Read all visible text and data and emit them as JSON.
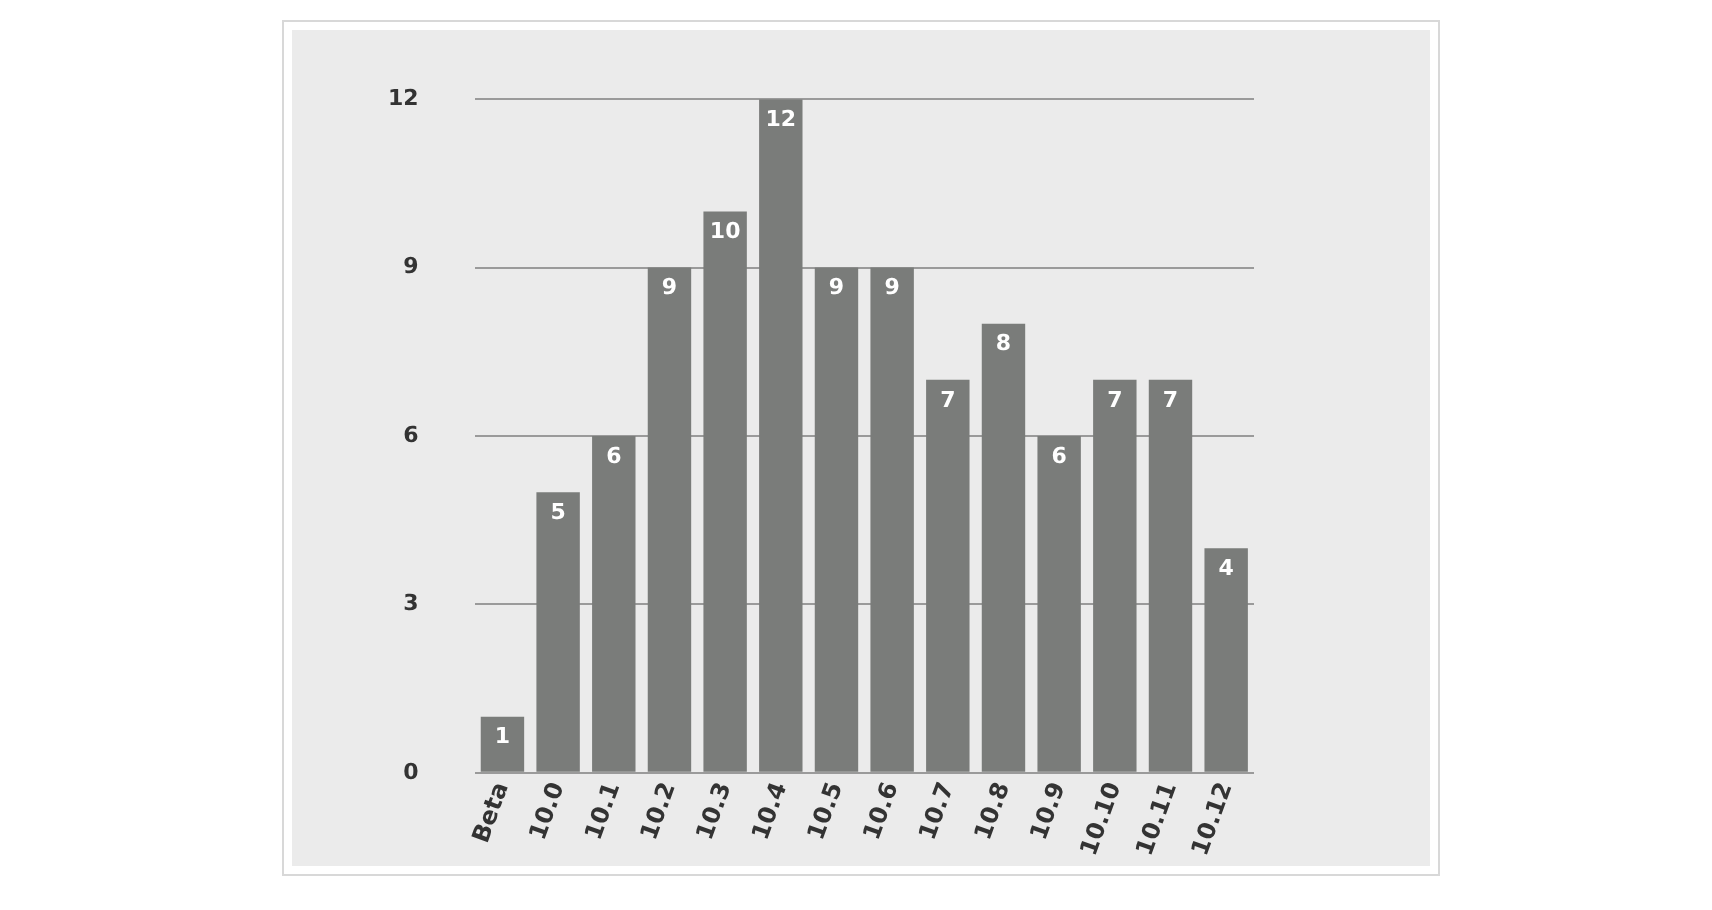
{
  "chart_data": {
    "type": "bar",
    "categories": [
      "Beta",
      "10.0",
      "10.1",
      "10.2",
      "10.3",
      "10.4",
      "10.5",
      "10.6",
      "10.7",
      "10.8",
      "10.9",
      "10.10",
      "10.11",
      "10.12"
    ],
    "values": [
      1,
      5,
      6,
      9,
      10,
      12,
      9,
      9,
      7,
      8,
      6,
      7,
      7,
      4
    ],
    "color": "#7a7c7a",
    "ylim": [
      0,
      12
    ],
    "yticks": [
      0,
      3,
      6,
      9,
      12
    ],
    "grid": "y",
    "legend": false,
    "data_labels": true
  }
}
